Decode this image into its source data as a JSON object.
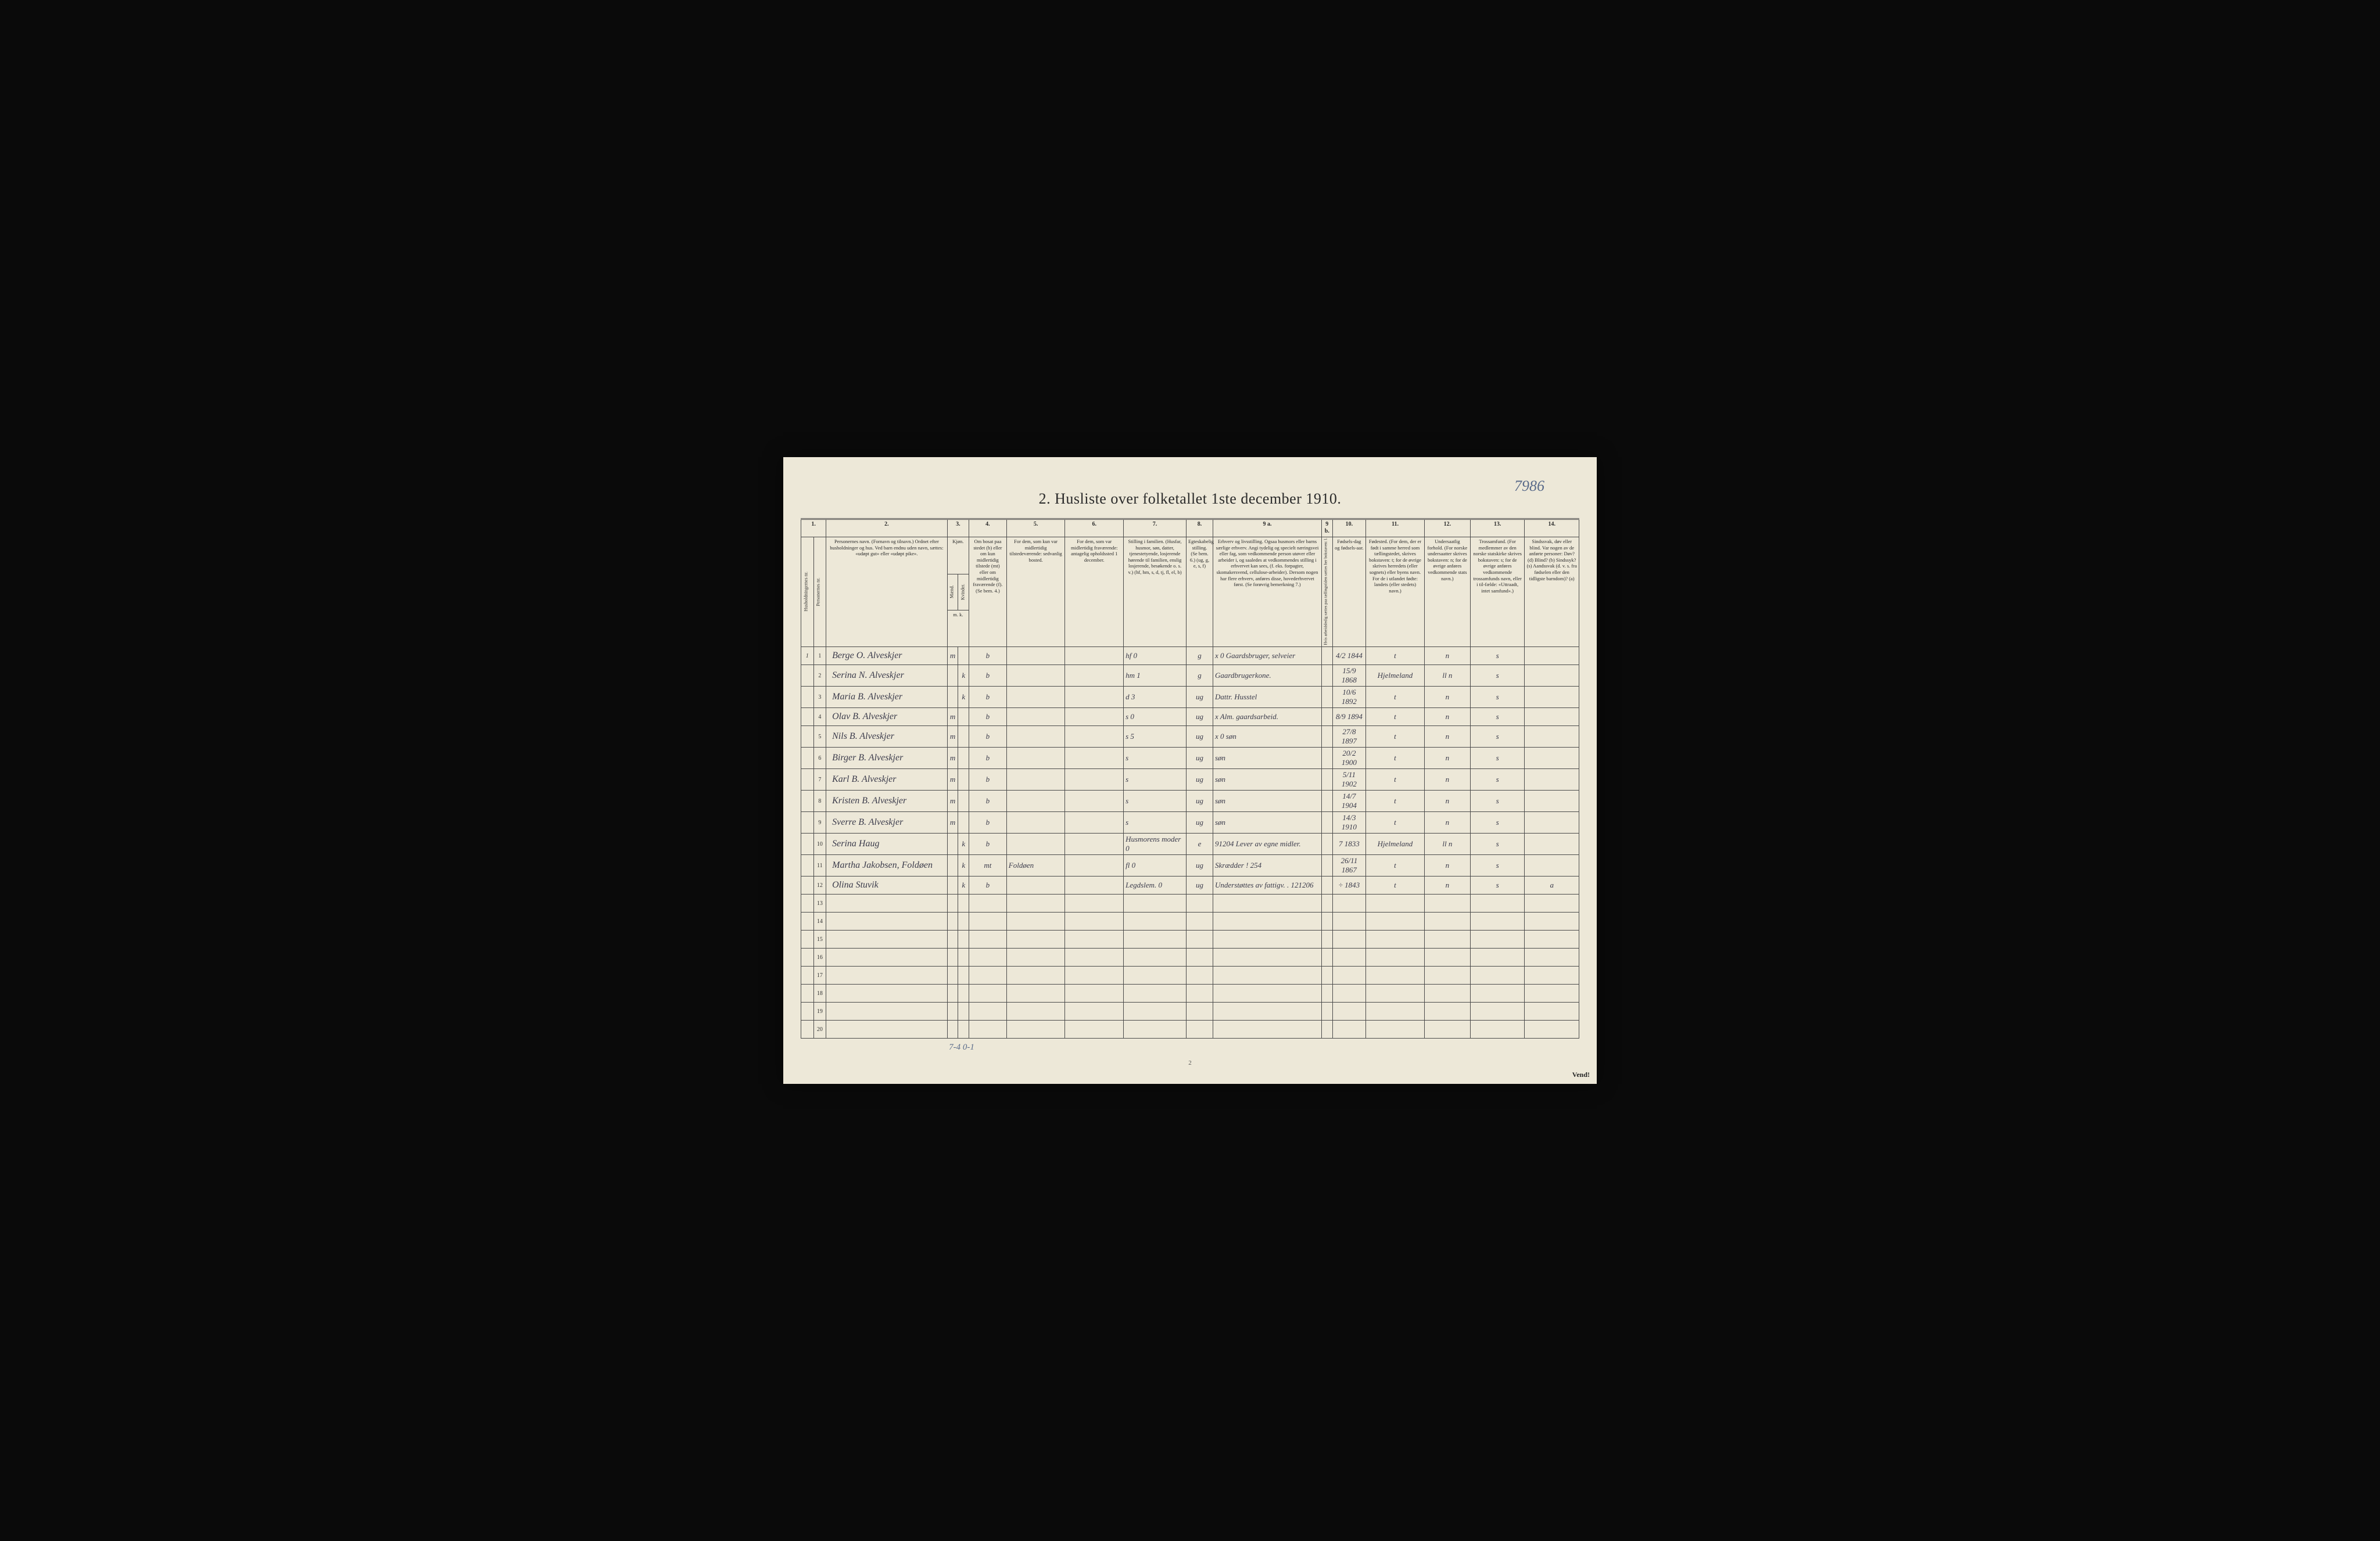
{
  "page_id": "7986",
  "title": "2.  Husliste over folketallet 1ste december 1910.",
  "page_number": "2",
  "vend": "Vend!",
  "tally": "7-4     0-1",
  "columns": {
    "nums": [
      "1.",
      "2.",
      "3.",
      "4.",
      "5.",
      "6.",
      "7.",
      "8.",
      "9 a.",
      "9 b.",
      "10.",
      "11.",
      "12.",
      "13.",
      "14."
    ],
    "h1": "Husholdningernes nr.",
    "h1b": "Personernes nr.",
    "h2": "Personernes navn.\n(Fornavn og tilnavn.)\nOrdnet efter husholdninger og hus.\nVed barn endnu uden navn, sættes: «udøpt gut» eller «udøpt pike».",
    "h3": "Kjøn.",
    "h3m": "Mænd.",
    "h3k": "Kvinder.",
    "h3mk": "m.  k.",
    "h4": "Om bosat paa stedet (b) eller om kun midlertidig tilstede (mt) eller om midlertidig fraværende (f).\n(Se bem. 4.)",
    "h5": "For dem, som kun var midlertidig tilstedeværende:\nsedvanlig bosted.",
    "h6": "For dem, som var midlertidig fraværende:\nantagelig opholdssted 1 december.",
    "h7": "Stilling i familien.\n(Husfar, husmor, søn, datter, tjenestetyende, losjerende hørende til familien, enslig losjerende, besøkende o. s. v.)\n(hf, hm, s, d, tj, fl, el, b)",
    "h8": "Egteskabelig stilling.\n(Se bem. 6.)\n(ug, g, e, s, f)",
    "h9a": "Erhverv og livsstilling.\nOgsaa husmors eller barns særlige erhverv.\nAngi tydelig og specielt næringsvei eller fag, som vedkommende person utøver eller arbeider i, og saaledes at vedkommendes stilling i erhvervet kan sees, (f. eks. forpagter, skomakersvend, cellulose-arbeider). Dersom nogen har flere erhverv, anføres disse, hovederhvervet først.\n(Se forøvrig bemerkning 7.)",
    "h9b": "Hvis arbeidsledig sættes paa tællingstiden sættes her bokstaven: l.",
    "h10": "Fødsels-dag og fødsels-aar.",
    "h11": "Fødested.\n(For dem, der er født i samme herred som tællingstedet, skrives bokstaven: t; for de øvrige skrives herredets (eller sognets) eller byens navn.\nFor de i utlandet fødte: landets (eller stedets) navn.)",
    "h12": "Undersaatlig forhold.\n(For norske undersaatter skrives bokstaven: n; for de øvrige anføres vedkommende stats navn.)",
    "h13": "Trossamfund.\n(For medlemmer av den norske statskirke skrives bokstaven: s; for de øvrige anføres vedkommende trossamfunds navn, eller i til-fælde: «Uttraadt, intet samfund».)",
    "h14": "Sindssvak, døv eller blind.\nVar nogen av de anførte personer:\nDøv?       (d)\nBlind?      (b)\nSindssyk?  (s)\nAandssvak (d. v. s. fra fødselen eller den tidligste barndom)?  (a)"
  },
  "rows": [
    {
      "hh": "1",
      "pn": "1",
      "name": "Berge O. Alveskjer",
      "m": "m",
      "k": "",
      "bmt": "b",
      "c5": "",
      "c6": "",
      "c7": "hf       0",
      "c8": "g",
      "c9a": "x 0  Gaardsbruger, selveier",
      "c10": "4/2 1844",
      "c11": "t",
      "c12": "n",
      "c13": "s",
      "c14": ""
    },
    {
      "hh": "",
      "pn": "2",
      "name": "Serina N. Alveskjer",
      "m": "",
      "k": "k",
      "bmt": "b",
      "c5": "",
      "c6": "",
      "c7": "hm       1",
      "c8": "g",
      "c9a": "Gaardbrugerkone.",
      "c10": "15/9 1868",
      "c11": "Hjelmeland",
      "c12": "ll   n",
      "c13": "s",
      "c14": ""
    },
    {
      "hh": "",
      "pn": "3",
      "name": "Maria B. Alveskjer",
      "m": "",
      "k": "k",
      "bmt": "b",
      "c5": "",
      "c6": "",
      "c7": "d        3",
      "c8": "ug",
      "c9a": "Dattr. Husstel",
      "c10": "10/6 1892",
      "c11": "t",
      "c12": "n",
      "c13": "s",
      "c14": ""
    },
    {
      "hh": "",
      "pn": "4",
      "name": "Olav B. Alveskjer",
      "m": "m",
      "k": "",
      "bmt": "b",
      "c5": "",
      "c6": "",
      "c7": "s        0",
      "c8": "ug",
      "c9a": "x Alm. gaardsarbeid.",
      "c10": "8/9 1894",
      "c11": "t",
      "c12": "n",
      "c13": "s",
      "c14": ""
    },
    {
      "hh": "",
      "pn": "5",
      "name": "Nils B. Alveskjer",
      "m": "m",
      "k": "",
      "bmt": "b",
      "c5": "",
      "c6": "",
      "c7": "s        5",
      "c8": "ug",
      "c9a": "x 0     søn",
      "c10": "27/8 1897",
      "c11": "t",
      "c12": "n",
      "c13": "s",
      "c14": ""
    },
    {
      "hh": "",
      "pn": "6",
      "name": "Birger B. Alveskjer",
      "m": "m",
      "k": "",
      "bmt": "b",
      "c5": "",
      "c6": "",
      "c7": "s",
      "c8": "ug",
      "c9a": "søn",
      "c10": "20/2 1900",
      "c11": "t",
      "c12": "n",
      "c13": "s",
      "c14": ""
    },
    {
      "hh": "",
      "pn": "7",
      "name": "Karl B. Alveskjer",
      "m": "m",
      "k": "",
      "bmt": "b",
      "c5": "",
      "c6": "",
      "c7": "s",
      "c8": "ug",
      "c9a": "søn",
      "c10": "5/11 1902",
      "c11": "t",
      "c12": "n",
      "c13": "s",
      "c14": ""
    },
    {
      "hh": "",
      "pn": "8",
      "name": "Kristen B. Alveskjer",
      "m": "m",
      "k": "",
      "bmt": "b",
      "c5": "",
      "c6": "",
      "c7": "s",
      "c8": "ug",
      "c9a": "søn",
      "c10": "14/7 1904",
      "c11": "t",
      "c12": "n",
      "c13": "s",
      "c14": ""
    },
    {
      "hh": "",
      "pn": "9",
      "name": "Sverre B. Alveskjer",
      "m": "m",
      "k": "",
      "bmt": "b",
      "c5": "",
      "c6": "",
      "c7": "s",
      "c8": "ug",
      "c9a": "søn",
      "c10": "14/3 1910",
      "c11": "t",
      "c12": "n",
      "c13": "s",
      "c14": ""
    },
    {
      "hh": "",
      "pn": "10",
      "name": "Serina Haug",
      "m": "",
      "k": "k",
      "bmt": "b",
      "c5": "",
      "c6": "",
      "c7": "Husmorens moder   0",
      "c8": "e",
      "c9a": "91204  Lever av egne midler.",
      "c10": "7 1833",
      "c11": "Hjelmeland",
      "c12": "ll   n",
      "c13": "s",
      "c14": ""
    },
    {
      "hh": "",
      "pn": "11",
      "name": "Martha Jakobsen, Foldøen",
      "m": "",
      "k": "k",
      "bmt": "mt",
      "c5": "Foldøen",
      "c6": "",
      "c7": "fl        0",
      "c8": "ug",
      "c9a": "Skrædder ! 254",
      "c10": "26/11 1867",
      "c11": "t",
      "c12": "n",
      "c13": "s",
      "c14": ""
    },
    {
      "hh": "",
      "pn": "12",
      "name": "Olina Stuvik",
      "m": "",
      "k": "k",
      "bmt": "b",
      "c5": "",
      "c6": "",
      "c7": "Legdslem.   0",
      "c8": "ug",
      "c9a": "Understøttes av fattigv. . 121206",
      "c10": "÷ 1843",
      "c11": "t",
      "c12": "n",
      "c13": "s",
      "c14": "a"
    }
  ],
  "empty_rows": [
    13,
    14,
    15,
    16,
    17,
    18,
    19,
    20
  ]
}
